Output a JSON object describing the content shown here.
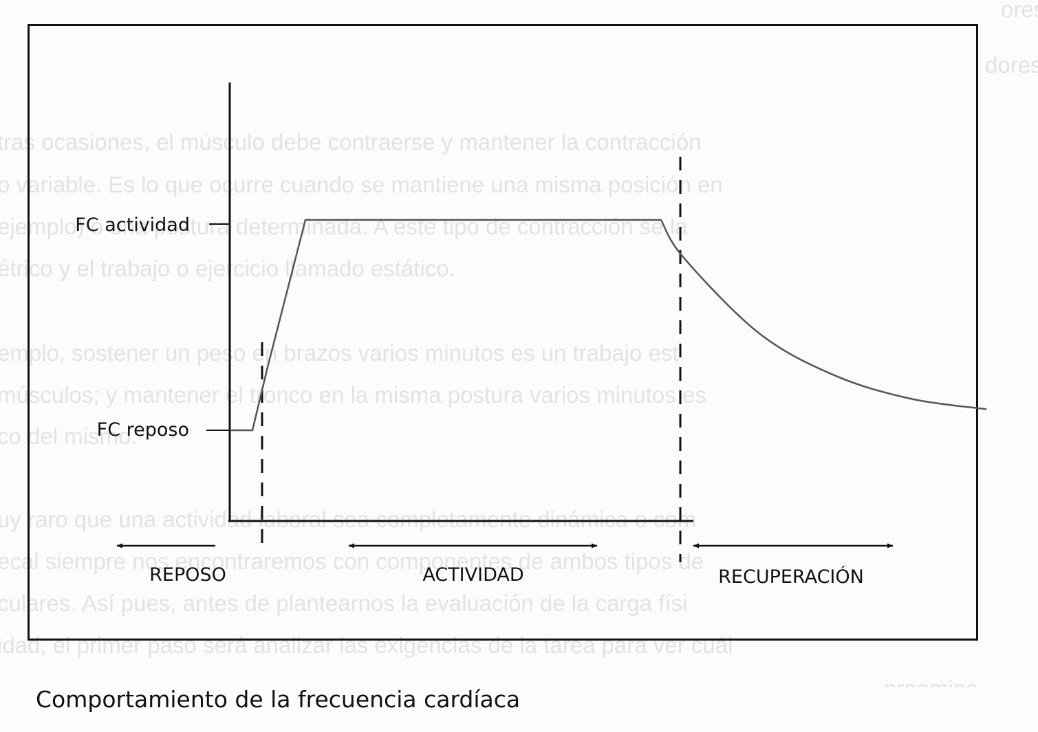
{
  "background_text": [
    "ores y la postura en una mesa es un trabajo dinámico, pero los mús",
    "dores.",
    "tras ocasiones, el músculo debe contraerse y mantener la contracción",
    "o variable. Es lo que ocurre cuando se mantiene una misma posición en",
    "ejemplo) o una postura determinada. A este tipo de contracción se la",
    "étrico y el trabajo o ejercicio llamado estático.",
    "emplo, sostener un peso en brazos varios minutos es un trabajo est",
    "músculos; y mantener el tronco en la misma postura varios minutos es",
    "co del mismo.",
    "uy raro que una actividad laboral sea completamente dinámica o com",
    "ecal siempre nos encontraremos con componentes de ambos tipos de",
    "culares. Así pues, antes de plantearnos la evaluación de la carga físi",
    "idad, el primer paso será analizar las exigencias de la tarea para ver cuál",
    "preomina."
  ],
  "caption": "Comportamiento de la frecuencia cardíaca",
  "chart_data": {
    "type": "line",
    "title": "",
    "xlabel": "",
    "ylabel": "",
    "y_tick_labels": [
      "FC actividad",
      "FC reposo"
    ],
    "phases": [
      {
        "name": "reposo",
        "label": "REPOSO",
        "arrow": "left"
      },
      {
        "name": "actividad",
        "label": "ACTIVIDAD",
        "arrow": "both"
      },
      {
        "name": "recuperacion",
        "label": "RECUPERACIÓN",
        "arrow": "both"
      }
    ],
    "phase_boundaries": [
      "reposo-actividad",
      "actividad-recuperacion"
    ],
    "series": [
      {
        "x": [
          0,
          0.3,
          0.5,
          1,
          3,
          5.7,
          6,
          7,
          8,
          9,
          10
        ],
        "y": [
          0,
          0,
          0.3,
          1,
          1,
          1,
          0.82,
          0.46,
          0.26,
          0.15,
          0.1
        ]
      }
    ],
    "ylim": [
      0,
      1
    ],
    "grid": false,
    "legend": "none",
    "line_color": "#555555",
    "ink_color": "#111111"
  }
}
